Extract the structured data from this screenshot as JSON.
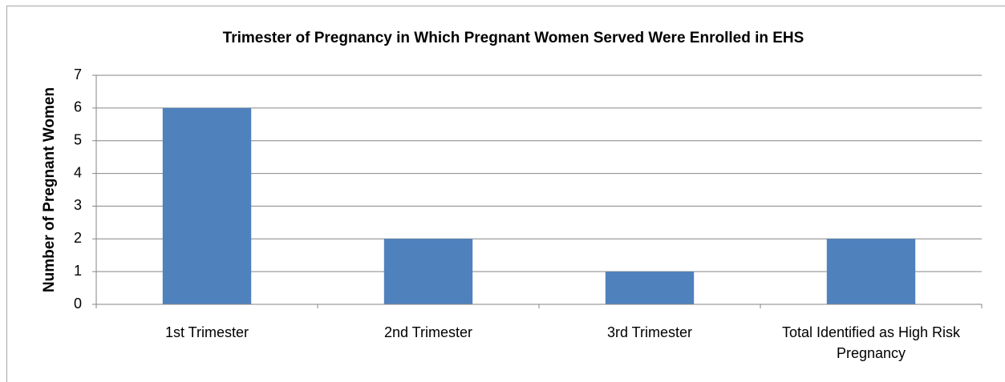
{
  "chart_data": {
    "type": "bar",
    "title": "Trimester of Pregnancy in Which Pregnant Women Served Were Enrolled in EHS",
    "y_label": "Number of Pregnant Women",
    "categories": [
      "1st Trimester",
      "2nd Trimester",
      "3rd Trimester",
      "Total Identified as High Risk Pregnancy"
    ],
    "values": [
      6,
      2,
      1,
      2
    ],
    "color": "#4f81bd",
    "ylim": [
      0,
      7
    ],
    "yticks": [
      0,
      1,
      2,
      3,
      4,
      5,
      6,
      7
    ],
    "grid": true
  }
}
